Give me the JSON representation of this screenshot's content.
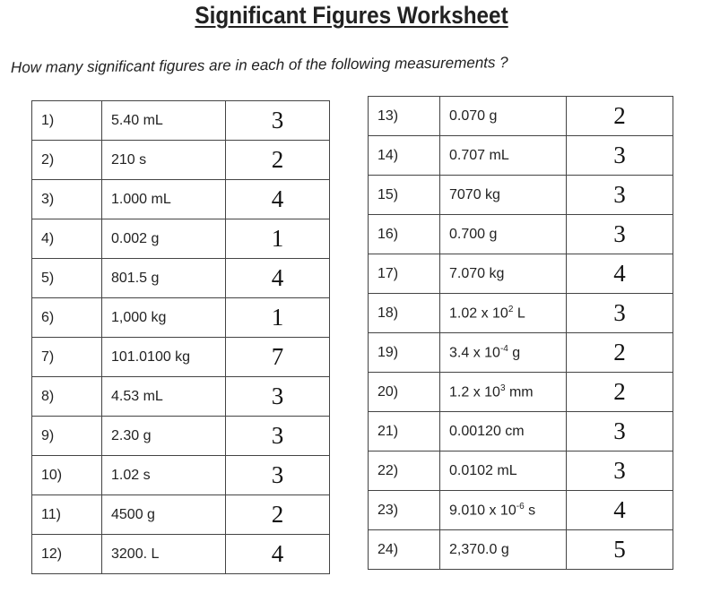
{
  "title": "Significant Figures Worksheet",
  "question": "How many significant figures are in each of the following measurements ?",
  "left_table": [
    {
      "number": "1)",
      "measurement": "5.40 mL",
      "answer": "3"
    },
    {
      "number": "2)",
      "measurement": "210 s",
      "answer": "2"
    },
    {
      "number": "3)",
      "measurement": "1.000 mL",
      "answer": "4"
    },
    {
      "number": "4)",
      "measurement": "0.002 g",
      "answer": "1"
    },
    {
      "number": "5)",
      "measurement": "801.5 g",
      "answer": "4"
    },
    {
      "number": "6)",
      "measurement": "1,000 kg",
      "answer": "1"
    },
    {
      "number": "7)",
      "measurement": "101.0100 kg",
      "answer": "7"
    },
    {
      "number": "8)",
      "measurement": "4.53 mL",
      "answer": "3"
    },
    {
      "number": "9)",
      "measurement": "2.30 g",
      "answer": "3"
    },
    {
      "number": "10)",
      "measurement": "1.02 s",
      "answer": "3"
    },
    {
      "number": "11)",
      "measurement": "4500 g",
      "answer": "2"
    },
    {
      "number": "12)",
      "measurement": "3200. L",
      "answer": "4"
    }
  ],
  "right_table": [
    {
      "number": "13)",
      "measurement": "0.070 g",
      "answer": "2"
    },
    {
      "number": "14)",
      "measurement": "0.707 mL",
      "answer": "3"
    },
    {
      "number": "15)",
      "measurement": "7070 kg",
      "answer": "3"
    },
    {
      "number": "16)",
      "measurement": "0.700 g",
      "answer": "3"
    },
    {
      "number": "17)",
      "measurement": "7.070 kg",
      "answer": "4"
    },
    {
      "number": "18)",
      "measurement": "1.02 x 10",
      "exponent": "2",
      "unit": " L",
      "answer": "3"
    },
    {
      "number": "19)",
      "measurement": "3.4 x 10",
      "exponent": "-4",
      "unit": " g",
      "answer": "2"
    },
    {
      "number": "20)",
      "measurement": "1.2 x 10",
      "exponent": "3",
      "unit": " mm",
      "answer": "2"
    },
    {
      "number": "21)",
      "measurement": "0.00120 cm",
      "answer": "3"
    },
    {
      "number": "22)",
      "measurement": "0.0102 mL",
      "answer": "3"
    },
    {
      "number": "23)",
      "measurement": "9.010 x 10",
      "exponent": "-6",
      "unit": " s",
      "answer": "4"
    },
    {
      "number": "24)",
      "measurement": "2,370.0 g",
      "answer": "5"
    }
  ]
}
